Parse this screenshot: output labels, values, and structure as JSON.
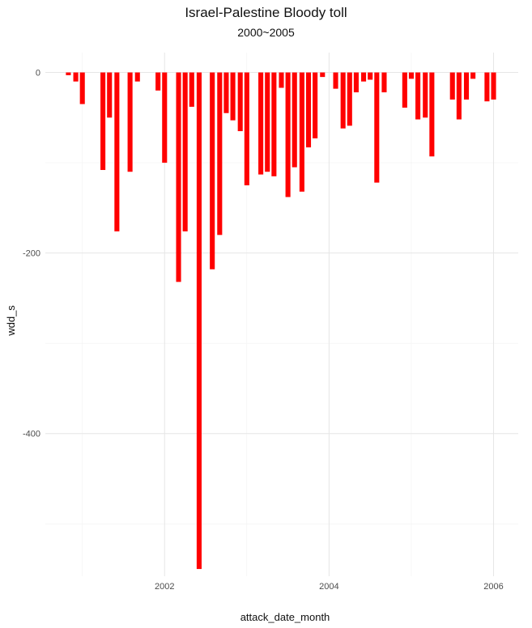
{
  "chart_data": {
    "type": "bar",
    "title": "Israel-Palestine Bloody toll",
    "subtitle": "2000~2005",
    "xlabel": "attack_date_month",
    "ylabel": "wdd_s",
    "xlim": [
      2000.55,
      2006.3
    ],
    "ylim": [
      -558,
      22
    ],
    "x_ticks": [
      {
        "value": 2002,
        "label": "2002"
      },
      {
        "value": 2004,
        "label": "2004"
      },
      {
        "value": 2006,
        "label": "2006"
      }
    ],
    "y_ticks": [
      {
        "value": 0,
        "label": "0"
      },
      {
        "value": -200,
        "label": "-200"
      },
      {
        "value": -400,
        "label": "-400"
      }
    ],
    "grid": true,
    "bar_color": "#ff0000",
    "overlap_color": "#a00000",
    "series": [
      {
        "x": [
          2000.83,
          2000.92,
          2001.0,
          2001.25,
          2001.33,
          2001.42,
          2001.58,
          2001.67,
          2001.92,
          2002.0,
          2002.17,
          2002.25,
          2002.33,
          2002.42,
          2002.58,
          2002.67,
          2002.75,
          2002.83,
          2002.92,
          2003.0,
          2003.17,
          2003.25,
          2003.33,
          2003.42,
          2003.5,
          2003.58,
          2003.67,
          2003.75,
          2003.83,
          2003.92,
          2004.08,
          2004.17,
          2004.25,
          2004.33,
          2004.42,
          2004.5,
          2004.58,
          2004.67,
          2004.92,
          2005.0,
          2005.08,
          2005.17,
          2005.25,
          2005.5,
          2005.58,
          2005.67,
          2005.75,
          2005.92,
          2006.0
        ],
        "values": [
          -3,
          -10,
          -35,
          -108,
          -50,
          -176,
          -110,
          -10,
          -20,
          -100,
          -232,
          -176,
          -38,
          -550,
          -218,
          -180,
          -45,
          -53,
          -65,
          -125,
          -113,
          -110,
          -115,
          -17,
          -138,
          -105,
          -132,
          -83,
          -73,
          -5,
          -18,
          -62,
          -59,
          -22,
          -10,
          -8,
          -122,
          -22,
          -39,
          -7,
          -52,
          -50,
          -93,
          -30,
          -52,
          -30,
          -7,
          -32,
          -30
        ]
      }
    ]
  }
}
